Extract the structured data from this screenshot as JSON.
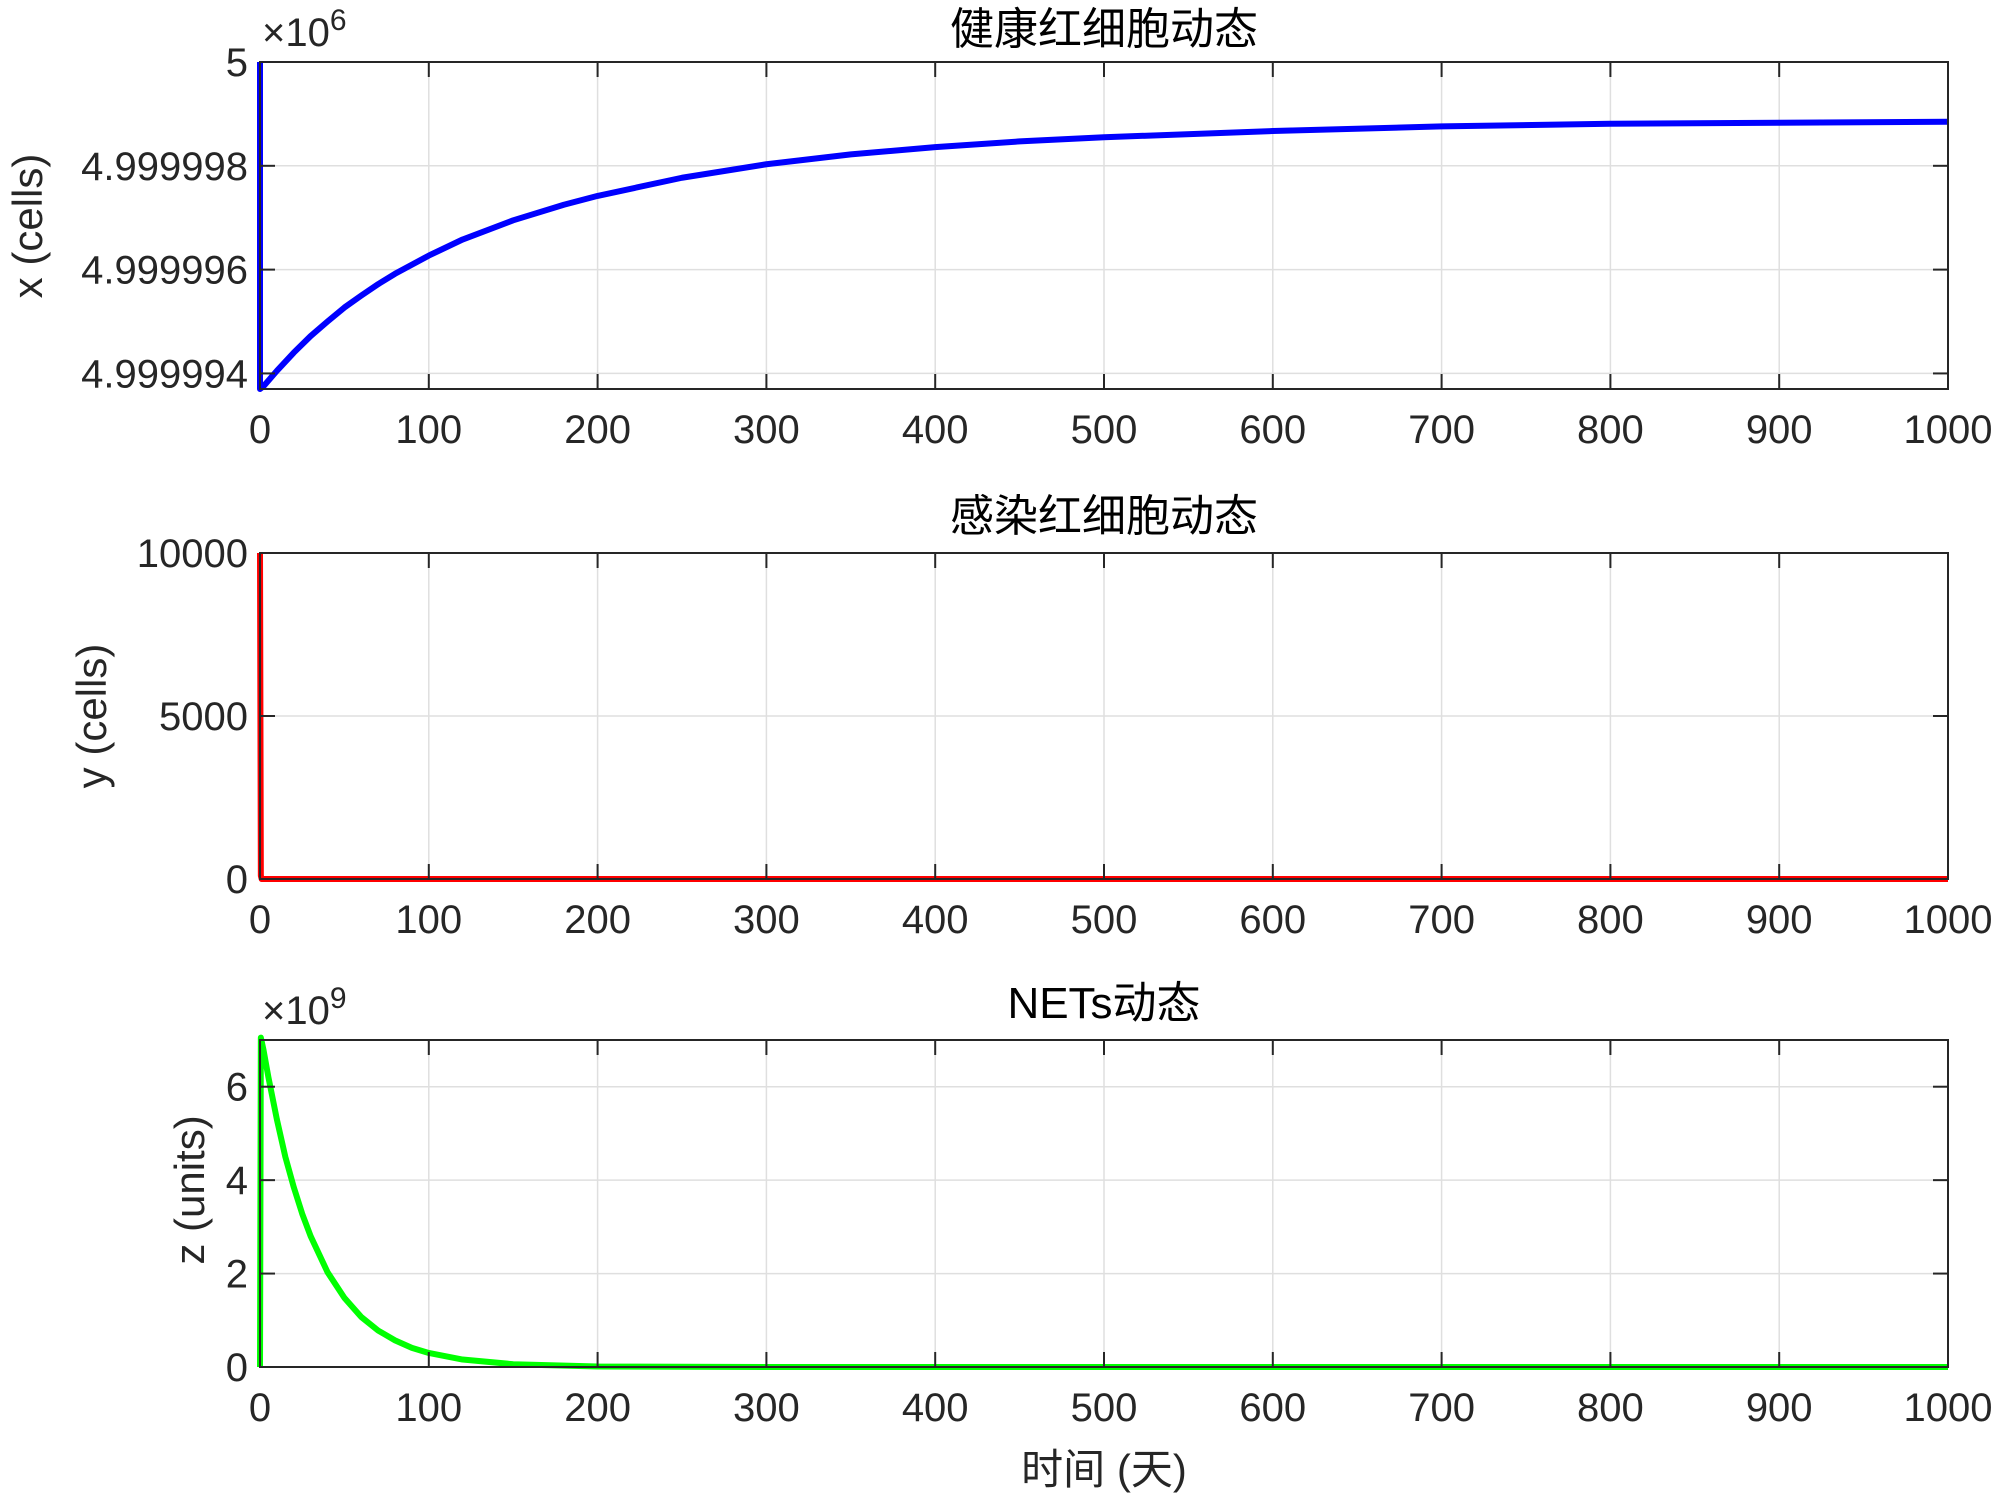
{
  "chart_data": [
    {
      "type": "line",
      "title": "健康红细胞动态",
      "xlabel": "",
      "ylabel": "x (cells)",
      "xlim": [
        0,
        1000
      ],
      "ylim": [
        4999993.7,
        5000000
      ],
      "xticks": [
        0,
        100,
        200,
        300,
        400,
        500,
        600,
        700,
        800,
        900,
        1000
      ],
      "xtick_labels": [
        "0",
        "100",
        "200",
        "300",
        "400",
        "500",
        "600",
        "700",
        "800",
        "900",
        "1000"
      ],
      "yticks": [
        4999994,
        4999996,
        4999998,
        5000000
      ],
      "ytick_labels": [
        "4.999994",
        "4.999996",
        "4.999998",
        "5"
      ],
      "exponent_label": {
        "base": "×10",
        "power": "6"
      },
      "grid": true,
      "series": [
        {
          "color": "#0000ff",
          "x": [
            0,
            0,
            2,
            10,
            20,
            30,
            40,
            50,
            60,
            70,
            80,
            100,
            120,
            150,
            180,
            200,
            250,
            300,
            350,
            400,
            450,
            500,
            600,
            700,
            800,
            900,
            1000
          ],
          "y": [
            5000000,
            4999993.7,
            4999993.75,
            4999994.05,
            4999994.4,
            4999994.72,
            4999995.0,
            4999995.27,
            4999995.5,
            4999995.72,
            4999995.92,
            4999996.27,
            4999996.58,
            4999996.95,
            4999997.25,
            4999997.42,
            4999997.77,
            4999998.03,
            4999998.22,
            4999998.36,
            4999998.47,
            4999998.55,
            4999998.67,
            4999998.76,
            4999998.81,
            4999998.83,
            4999998.85
          ]
        }
      ]
    },
    {
      "type": "line",
      "title": "感染红细胞动态",
      "xlabel": "",
      "ylabel": "y (cells)",
      "xlim": [
        0,
        1000
      ],
      "ylim": [
        0,
        10000
      ],
      "xticks": [
        0,
        100,
        200,
        300,
        400,
        500,
        600,
        700,
        800,
        900,
        1000
      ],
      "xtick_labels": [
        "0",
        "100",
        "200",
        "300",
        "400",
        "500",
        "600",
        "700",
        "800",
        "900",
        "1000"
      ],
      "yticks": [
        0,
        5000,
        10000
      ],
      "ytick_labels": [
        "0",
        "5000",
        "10000"
      ],
      "grid": true,
      "series": [
        {
          "color": "#ff0000",
          "x": [
            0,
            0.5,
            1,
            1000
          ],
          "y": [
            10000,
            100,
            0,
            0
          ]
        }
      ]
    },
    {
      "type": "line",
      "title": "NETs动态",
      "xlabel": "时间 (天)",
      "ylabel": "z (units)",
      "xlim": [
        0,
        1000
      ],
      "ylim": [
        0,
        7
      ],
      "xticks": [
        0,
        100,
        200,
        300,
        400,
        500,
        600,
        700,
        800,
        900,
        1000
      ],
      "xtick_labels": [
        "0",
        "100",
        "200",
        "300",
        "400",
        "500",
        "600",
        "700",
        "800",
        "900",
        "1000"
      ],
      "yticks": [
        0,
        2,
        4,
        6
      ],
      "ytick_labels": [
        "0",
        "2",
        "4",
        "6"
      ],
      "exponent_label": {
        "base": "×10",
        "power": "9"
      },
      "grid": true,
      "series": [
        {
          "color": "#00ff00",
          "x": [
            0,
            0.5,
            2,
            5,
            10,
            15,
            20,
            25,
            30,
            40,
            50,
            60,
            70,
            80,
            90,
            100,
            120,
            150,
            200,
            300,
            500,
            1000
          ],
          "y": [
            0,
            7.05,
            6.8,
            6.2,
            5.3,
            4.5,
            3.85,
            3.28,
            2.8,
            2.03,
            1.48,
            1.07,
            0.78,
            0.57,
            0.41,
            0.3,
            0.16,
            0.06,
            0.01,
            0,
            0,
            0
          ]
        }
      ]
    }
  ]
}
